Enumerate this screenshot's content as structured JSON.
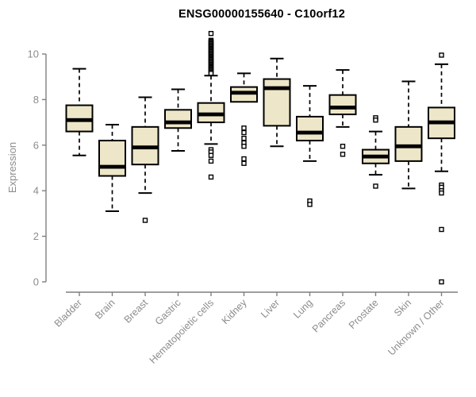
{
  "chart_data": {
    "type": "boxplot",
    "title": "ENSG00000155640 - C10orf12",
    "ylabel": "Expression",
    "xlabel": "",
    "ylim": [
      0,
      10
    ],
    "yticks": [
      0,
      2,
      4,
      6,
      8,
      10
    ],
    "grid": false,
    "legend": "none",
    "colors": {
      "box_fill": "#ede6c8",
      "box_stroke": "#000000",
      "median": "#000000",
      "whisker": "#000000",
      "axis": "#7f7f7f",
      "tick_label": "#8c8c8c",
      "title": "#000000",
      "background": "#ffffff"
    },
    "categories": [
      "Bladder",
      "Brain",
      "Breast",
      "Gastric",
      "Hematopoietic cells",
      "Kidney",
      "Liver",
      "Lung",
      "Pancreas",
      "Prostate",
      "Skin",
      "Unknown / Other"
    ],
    "series": [
      {
        "category": "Bladder",
        "whisker_low": 5.55,
        "q1": 6.6,
        "median": 7.1,
        "q3": 7.75,
        "whisker_high": 9.35,
        "outliers": []
      },
      {
        "category": "Brain",
        "whisker_low": 3.1,
        "q1": 4.65,
        "median": 5.05,
        "q3": 6.2,
        "whisker_high": 6.9,
        "outliers": []
      },
      {
        "category": "Breast",
        "whisker_low": 3.9,
        "q1": 5.15,
        "median": 5.9,
        "q3": 6.8,
        "whisker_high": 8.1,
        "outliers": [
          2.7
        ]
      },
      {
        "category": "Gastric",
        "whisker_low": 5.75,
        "q1": 6.75,
        "median": 7.0,
        "q3": 7.55,
        "whisker_high": 8.45,
        "outliers": []
      },
      {
        "category": "Hematopoietic cells",
        "whisker_low": 6.05,
        "q1": 7.0,
        "median": 7.35,
        "q3": 7.85,
        "whisker_high": 9.05,
        "outliers": [
          10.9,
          10.6,
          10.55,
          10.5,
          10.45,
          10.4,
          10.35,
          10.3,
          10.25,
          10.2,
          10.15,
          10.1,
          10.05,
          10.0,
          9.95,
          9.9,
          9.85,
          9.8,
          9.75,
          9.7,
          9.65,
          9.6,
          9.55,
          9.5,
          9.45,
          9.4,
          9.35,
          9.3,
          9.25,
          9.2,
          9.15,
          5.8,
          5.7,
          5.55,
          5.3,
          4.6
        ]
      },
      {
        "category": "Kidney",
        "whisker_low": 7.9,
        "q1": 7.9,
        "median": 8.3,
        "q3": 8.55,
        "whisker_high": 9.15,
        "outliers": [
          6.75,
          6.55,
          6.3,
          6.1,
          5.95,
          5.4,
          5.2
        ]
      },
      {
        "category": "Liver",
        "whisker_low": 5.95,
        "q1": 6.85,
        "median": 8.5,
        "q3": 8.9,
        "whisker_high": 9.8,
        "outliers": []
      },
      {
        "category": "Lung",
        "whisker_low": 5.3,
        "q1": 6.2,
        "median": 6.55,
        "q3": 7.25,
        "whisker_high": 8.6,
        "outliers": [
          3.55,
          3.4
        ]
      },
      {
        "category": "Pancreas",
        "whisker_low": 6.8,
        "q1": 7.35,
        "median": 7.65,
        "q3": 8.2,
        "whisker_high": 9.3,
        "outliers": [
          5.95,
          5.6
        ]
      },
      {
        "category": "Prostate",
        "whisker_low": 4.7,
        "q1": 5.2,
        "median": 5.5,
        "q3": 5.8,
        "whisker_high": 6.6,
        "outliers": [
          7.2,
          7.1,
          4.2
        ]
      },
      {
        "category": "Skin",
        "whisker_low": 4.1,
        "q1": 5.3,
        "median": 5.95,
        "q3": 6.8,
        "whisker_high": 8.8,
        "outliers": []
      },
      {
        "category": "Unknown / Other",
        "whisker_low": 4.85,
        "q1": 6.3,
        "median": 7.0,
        "q3": 7.65,
        "whisker_high": 9.55,
        "outliers": [
          9.95,
          4.25,
          4.15,
          4.0,
          3.9,
          2.3,
          0.0
        ]
      }
    ]
  }
}
